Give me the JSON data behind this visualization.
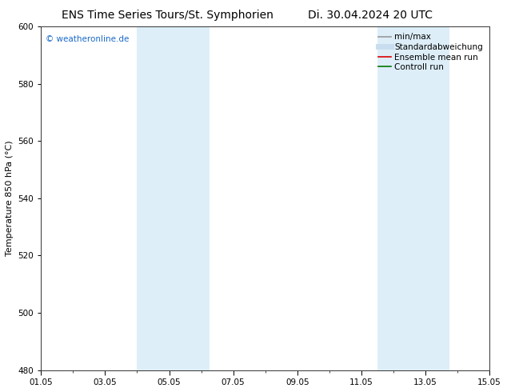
{
  "title_left": "ENS Time Series Tours/St. Symphorien",
  "title_right": "Di. 30.04.2024 20 UTC",
  "ylabel": "Temperature 850 hPa (°C)",
  "ylim": [
    480,
    600
  ],
  "yticks": [
    480,
    500,
    520,
    540,
    560,
    580,
    600
  ],
  "xtick_labels": [
    "01.05",
    "03.05",
    "05.05",
    "07.05",
    "09.05",
    "11.05",
    "13.05",
    "15.05"
  ],
  "xtick_positions": [
    0,
    2,
    4,
    6,
    8,
    10,
    12,
    14
  ],
  "xlim": [
    0,
    14
  ],
  "shaded_bands": [
    {
      "x_start": 3.0,
      "x_end": 3.75,
      "color": "#ddeef8"
    },
    {
      "x_start": 3.75,
      "x_end": 5.25,
      "color": "#ddeef8"
    },
    {
      "x_start": 10.5,
      "x_end": 11.25,
      "color": "#ddeef8"
    },
    {
      "x_start": 11.25,
      "x_end": 12.75,
      "color": "#ddeef8"
    }
  ],
  "watermark_text": "© weatheronline.de",
  "watermark_color": "#1a6ac8",
  "legend_items": [
    {
      "label": "min/max",
      "color": "#999999",
      "lw": 1.2,
      "style": "solid"
    },
    {
      "label": "Standardabweichung",
      "color": "#c8ddef",
      "lw": 5,
      "style": "solid"
    },
    {
      "label": "Ensemble mean run",
      "color": "#dd0000",
      "lw": 1.2,
      "style": "solid"
    },
    {
      "label": "Controll run",
      "color": "#007700",
      "lw": 1.2,
      "style": "solid"
    }
  ],
  "background_color": "#ffffff",
  "title_fontsize": 10,
  "axis_label_fontsize": 8,
  "tick_fontsize": 7.5,
  "legend_fontsize": 7.5
}
